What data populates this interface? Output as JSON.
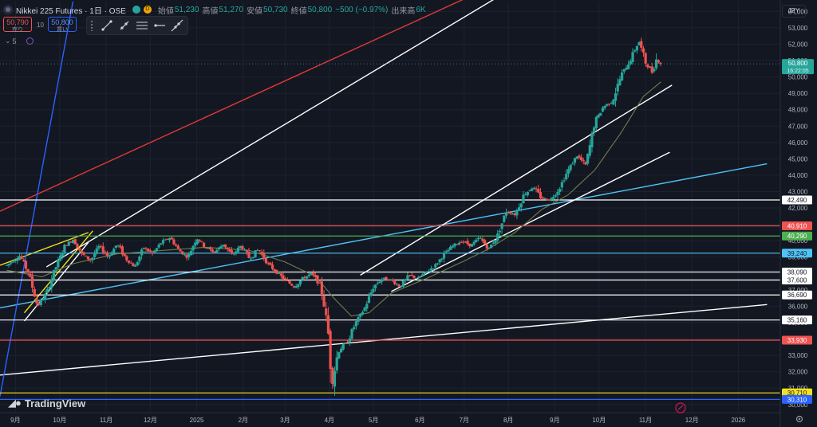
{
  "header": {
    "title": "Nikkei 225 Futures · 1日 · OSE",
    "open_label": "始値",
    "open": "51,230",
    "high_label": "高値",
    "high": "51,270",
    "low_label": "安値",
    "low": "50,730",
    "close_label": "終値",
    "close": "50,800",
    "change": "−500 (−0.97%)",
    "volume_label": "出来高",
    "volume": "6K",
    "market_badge": "D"
  },
  "quote": {
    "sell_price": "50,790",
    "sell_label": "売り",
    "spread": "10",
    "buy_price": "50,800",
    "buy_label": "買い"
  },
  "indicator_row": {
    "count": "5"
  },
  "currency": "JPY",
  "branding": "TradingView",
  "colors": {
    "background": "#131722",
    "bull": "#26a69a",
    "bear": "#ef5350",
    "trend_white": "#ffffff",
    "trend_red": "#e53935",
    "trend_blue": "#2962ff",
    "trend_cyan": "#4fc3f7",
    "trend_yellow": "#f2e21b",
    "ma": "#6e7f4c"
  },
  "chart_data": {
    "type": "candlestick",
    "y_ticks": [
      30000,
      31000,
      32000,
      33000,
      34000,
      35000,
      36000,
      37000,
      38000,
      39000,
      40000,
      41000,
      42000,
      43000,
      44000,
      45000,
      46000,
      47000,
      48000,
      49000,
      50000,
      51000,
      52000,
      53000,
      54000
    ],
    "y_range": [
      29600,
      54600
    ],
    "x_labels": [
      {
        "label": "9月",
        "t": 0.2
      },
      {
        "label": "10月",
        "t": 1.2
      },
      {
        "label": "11月",
        "t": 2.25
      },
      {
        "label": "12月",
        "t": 3.25
      },
      {
        "label": "2025",
        "t": 4.3
      },
      {
        "label": "2月",
        "t": 5.35
      },
      {
        "label": "3月",
        "t": 6.3
      },
      {
        "label": "4月",
        "t": 7.3
      },
      {
        "label": "5月",
        "t": 8.3
      },
      {
        "label": "6月",
        "t": 9.35
      },
      {
        "label": "7月",
        "t": 10.35
      },
      {
        "label": "8月",
        "t": 11.35
      },
      {
        "label": "9月",
        "t": 12.4
      },
      {
        "label": "10月",
        "t": 13.4
      },
      {
        "label": "11月",
        "t": 14.45
      },
      {
        "label": "12月",
        "t": 15.5
      },
      {
        "label": "2026",
        "t": 16.55
      }
    ],
    "x_range": [
      -0.15,
      17.5
    ],
    "last_price": {
      "value": 50800,
      "label": "50,800",
      "time": "16:22:05"
    },
    "path": [
      [
        0.0,
        38500
      ],
      [
        0.3,
        39100
      ],
      [
        0.5,
        38000
      ],
      [
        0.7,
        36000
      ],
      [
        0.9,
        36800
      ],
      [
        1.1,
        38300
      ],
      [
        1.3,
        39600
      ],
      [
        1.5,
        40100
      ],
      [
        1.7,
        39200
      ],
      [
        1.9,
        38800
      ],
      [
        2.1,
        39700
      ],
      [
        2.3,
        39000
      ],
      [
        2.5,
        39800
      ],
      [
        2.7,
        38900
      ],
      [
        2.9,
        38400
      ],
      [
        3.1,
        39600
      ],
      [
        3.3,
        39200
      ],
      [
        3.5,
        39900
      ],
      [
        3.7,
        40200
      ],
      [
        3.9,
        39400
      ],
      [
        4.1,
        39000
      ],
      [
        4.3,
        40200
      ],
      [
        4.5,
        39600
      ],
      [
        4.7,
        39300
      ],
      [
        4.9,
        39800
      ],
      [
        5.1,
        39100
      ],
      [
        5.3,
        39700
      ],
      [
        5.5,
        38900
      ],
      [
        5.7,
        39500
      ],
      [
        5.9,
        38600
      ],
      [
        6.1,
        38100
      ],
      [
        6.3,
        37600
      ],
      [
        6.5,
        37200
      ],
      [
        6.7,
        37700
      ],
      [
        6.9,
        38000
      ],
      [
        7.1,
        37300
      ],
      [
        7.2,
        35800
      ],
      [
        7.3,
        33800
      ],
      [
        7.35,
        31200
      ],
      [
        7.5,
        33300
      ],
      [
        7.7,
        33800
      ],
      [
        7.9,
        35000
      ],
      [
        8.1,
        35900
      ],
      [
        8.3,
        37200
      ],
      [
        8.5,
        37700
      ],
      [
        8.7,
        37600
      ],
      [
        8.9,
        37200
      ],
      [
        9.1,
        37900
      ],
      [
        9.3,
        37700
      ],
      [
        9.5,
        38100
      ],
      [
        9.7,
        38500
      ],
      [
        9.9,
        39200
      ],
      [
        10.1,
        39700
      ],
      [
        10.3,
        40000
      ],
      [
        10.5,
        39700
      ],
      [
        10.7,
        40200
      ],
      [
        10.9,
        39500
      ],
      [
        11.1,
        40300
      ],
      [
        11.3,
        41800
      ],
      [
        11.5,
        41600
      ],
      [
        11.7,
        42800
      ],
      [
        11.9,
        43300
      ],
      [
        12.1,
        42600
      ],
      [
        12.3,
        42500
      ],
      [
        12.5,
        43200
      ],
      [
        12.7,
        44300
      ],
      [
        12.9,
        45200
      ],
      [
        13.1,
        44600
      ],
      [
        13.3,
        47200
      ],
      [
        13.5,
        48200
      ],
      [
        13.7,
        48500
      ],
      [
        13.9,
        50100
      ],
      [
        14.1,
        51000
      ],
      [
        14.3,
        52200
      ],
      [
        14.45,
        50900
      ],
      [
        14.6,
        50300
      ],
      [
        14.7,
        51100
      ],
      [
        14.8,
        50800
      ]
    ],
    "ma_path": [
      [
        0.0,
        38200
      ],
      [
        0.8,
        37800
      ],
      [
        1.5,
        38600
      ],
      [
        2.5,
        39200
      ],
      [
        3.5,
        39400
      ],
      [
        4.5,
        39600
      ],
      [
        5.5,
        39400
      ],
      [
        6.3,
        38700
      ],
      [
        7.0,
        37800
      ],
      [
        7.4,
        36500
      ],
      [
        7.8,
        35400
      ],
      [
        8.2,
        35600
      ],
      [
        8.7,
        36800
      ],
      [
        9.5,
        37700
      ],
      [
        10.3,
        38700
      ],
      [
        10.9,
        39500
      ],
      [
        11.5,
        40500
      ],
      [
        12.1,
        41900
      ],
      [
        12.7,
        42800
      ],
      [
        13.3,
        44300
      ],
      [
        13.9,
        46600
      ],
      [
        14.4,
        48800
      ],
      [
        14.8,
        49700
      ]
    ],
    "levels": [
      {
        "value": 42490,
        "label": "42,490",
        "color": "#ffffff"
      },
      {
        "value": 40910,
        "label": "40,910",
        "color": "#ef5350"
      },
      {
        "value": 40290,
        "label": "40,290",
        "color": "#4caf50"
      },
      {
        "value": 39240,
        "label": "39,240",
        "color": "#4fc3f7"
      },
      {
        "value": 38090,
        "label": "38,090",
        "color": "#ffffff"
      },
      {
        "value": 37600,
        "label": "37,600",
        "color": "#ffffff"
      },
      {
        "value": 36690,
        "label": "36,690",
        "color": "#ffffff"
      },
      {
        "value": 35160,
        "label": "35,160",
        "color": "#ffffff"
      },
      {
        "value": 33930,
        "label": "33,930",
        "color": "#ef5350"
      },
      {
        "value": 30710,
        "label": "30,710",
        "color": "#f2e21b"
      },
      {
        "value": 30310,
        "label": "30,310",
        "color": "#2962ff"
      }
    ],
    "trendlines": [
      {
        "from": [
          -0.15,
          41800
        ],
        "to": [
          12.0,
          56800
        ],
        "color": "#e53935"
      },
      {
        "from": [
          0.9,
          38400
        ],
        "to": [
          12.3,
          56800
        ],
        "color": "#ffffff"
      },
      {
        "from": [
          0.4,
          35100
        ],
        "to": [
          1.85,
          39900
        ],
        "color": "#ffffff"
      },
      {
        "from": [
          0.4,
          35600
        ],
        "to": [
          1.95,
          40600
        ],
        "color": "#f2e21b"
      },
      {
        "from": [
          -0.15,
          38500
        ],
        "to": [
          1.85,
          40500
        ],
        "color": "#f2e21b"
      },
      {
        "from": [
          -0.15,
          35900
        ],
        "to": [
          17.2,
          44700
        ],
        "color": "#4fc3f7"
      },
      {
        "from": [
          8.0,
          37900
        ],
        "to": [
          15.05,
          49500
        ],
        "color": "#ffffff"
      },
      {
        "from": [
          8.7,
          36900
        ],
        "to": [
          15.0,
          45400
        ],
        "color": "#ffffff"
      },
      {
        "from": [
          -0.15,
          31800
        ],
        "to": [
          17.2,
          36100
        ],
        "color": "#ffffff"
      },
      {
        "from": [
          -0.15,
          30500
        ],
        "to": [
          1.5,
          54600
        ],
        "color": "#2962ff"
      }
    ]
  }
}
